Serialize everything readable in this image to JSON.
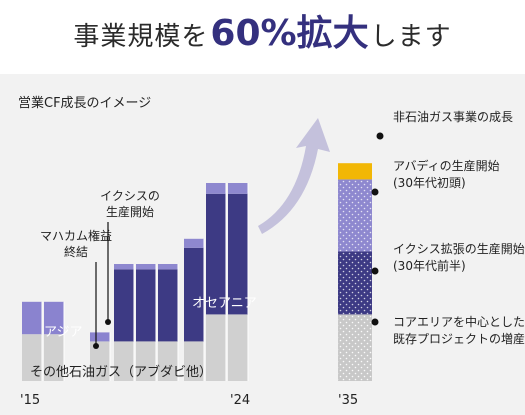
{
  "headline": {
    "part1": "事業規模を",
    "part2": "60%拡大",
    "part3": "します"
  },
  "chart_data": {
    "type": "bar",
    "title": "営業CF成長のイメージ",
    "x_labels": [
      {
        "text": "'15",
        "year": 2015
      },
      {
        "text": "'24",
        "year": 2024
      },
      {
        "text": "'35",
        "year": 2035
      }
    ],
    "history": {
      "years": [
        2015,
        2017,
        2018,
        2019,
        2020,
        2021,
        2022,
        2023,
        2024
      ],
      "series": [
        {
          "name": "その他石油ガス（アブダビ他）",
          "color": "#d0d0d0",
          "values": [
            26,
            26,
            22,
            22,
            22,
            22,
            22,
            37,
            37
          ]
        },
        {
          "name": "アジア",
          "color": "#8a83cf",
          "values": [
            18,
            18,
            5,
            0,
            0,
            0,
            0,
            0,
            0
          ]
        },
        {
          "name": "オセアニア",
          "color": "#3d3a84",
          "values": [
            0,
            0,
            0,
            40,
            40,
            40,
            52,
            67,
            67
          ]
        },
        {
          "name": "",
          "color": "#8e88cf",
          "values": [
            0,
            0,
            0,
            3,
            3,
            3,
            5,
            6,
            6
          ]
        }
      ]
    },
    "projection_2035": [
      {
        "label": "コアエリアを中心とした既存プロジェクトの増産等",
        "color": "#c8c8c8",
        "value": 37
      },
      {
        "label": "イクシス拡張の生産開始（30年代前半）",
        "color": "#3d3a84",
        "value": 35
      },
      {
        "label": "アバディの生産開始（30年代初頭）",
        "color": "#8e88cf",
        "value": 40
      },
      {
        "label": "非石油ガス事業の成長",
        "color": "#f2b705",
        "value": 9
      }
    ],
    "annotations": [
      {
        "text": "マハカム権益終結",
        "lines": [
          "マハカム権益",
          "終結"
        ]
      },
      {
        "text": "イクシスの生産開始",
        "lines": [
          "イクシスの",
          "生産開始"
        ]
      },
      {
        "text": "アジア",
        "lines": [
          "アジア"
        ]
      },
      {
        "text": "オセアニア",
        "lines": [
          "オセアニア"
        ]
      },
      {
        "text": "その他石油ガス（アブダビ他）",
        "lines": [
          "その他石油ガス（アブダビ他）"
        ]
      }
    ],
    "right_labels": [
      {
        "lines": [
          "非石油ガス事業の成長"
        ]
      },
      {
        "lines": [
          "アバディの生産開始",
          "(30年代初頭)"
        ]
      },
      {
        "lines": [
          "イクシス拡張の生産開始",
          "(30年代前半)"
        ]
      },
      {
        "lines": [
          "コアエリアを中心とした",
          "既存プロジェクトの増産等"
        ]
      }
    ]
  }
}
